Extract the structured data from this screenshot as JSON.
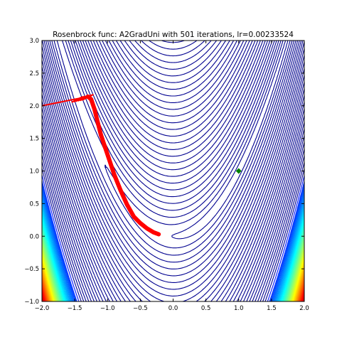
{
  "chart_data": {
    "type": "contour",
    "title": "Rosenbrock func: A2GradUni with 501 iterations, lr=0.00233524",
    "function": "rosenbrock",
    "xlim": [
      -2.0,
      2.0
    ],
    "ylim": [
      -1.0,
      3.0
    ],
    "x_ticks": [
      -2.0,
      -1.5,
      -1.0,
      -0.5,
      0.0,
      0.5,
      1.0,
      1.5,
      2.0
    ],
    "x_tick_labels": [
      "−2.0",
      "−1.5",
      "−1.0",
      "−0.5",
      "0.0",
      "0.5",
      "1.0",
      "1.5",
      "2.0"
    ],
    "y_ticks": [
      -1.0,
      -0.5,
      0.0,
      0.5,
      1.0,
      1.5,
      2.0,
      2.5,
      3.0
    ],
    "y_tick_labels": [
      "−1.0",
      "−0.5",
      "0.0",
      "0.5",
      "1.0",
      "1.5",
      "2.0",
      "2.5",
      "3.0"
    ],
    "colormap": "jet",
    "minimum": {
      "x": 1.0,
      "y": 1.0,
      "color": "#008000",
      "marker": "diamond"
    },
    "path": {
      "color": "#ff0000",
      "start": {
        "x": -2.0,
        "y": 2.0
      },
      "points": [
        [
          -2.0,
          2.0
        ],
        [
          -1.8,
          2.04
        ],
        [
          -1.6,
          2.08
        ],
        [
          -1.4,
          2.12
        ],
        [
          -1.3,
          2.14
        ],
        [
          -1.25,
          2.1
        ],
        [
          -1.2,
          1.95
        ],
        [
          -1.15,
          1.75
        ],
        [
          -1.1,
          1.55
        ],
        [
          -1.0,
          1.25
        ],
        [
          -0.9,
          0.95
        ],
        [
          -0.8,
          0.7
        ],
        [
          -0.7,
          0.48
        ],
        [
          -0.6,
          0.3
        ],
        [
          -0.5,
          0.2
        ],
        [
          -0.4,
          0.12
        ],
        [
          -0.3,
          0.06
        ],
        [
          -0.22,
          0.03
        ]
      ]
    },
    "grid": false
  }
}
